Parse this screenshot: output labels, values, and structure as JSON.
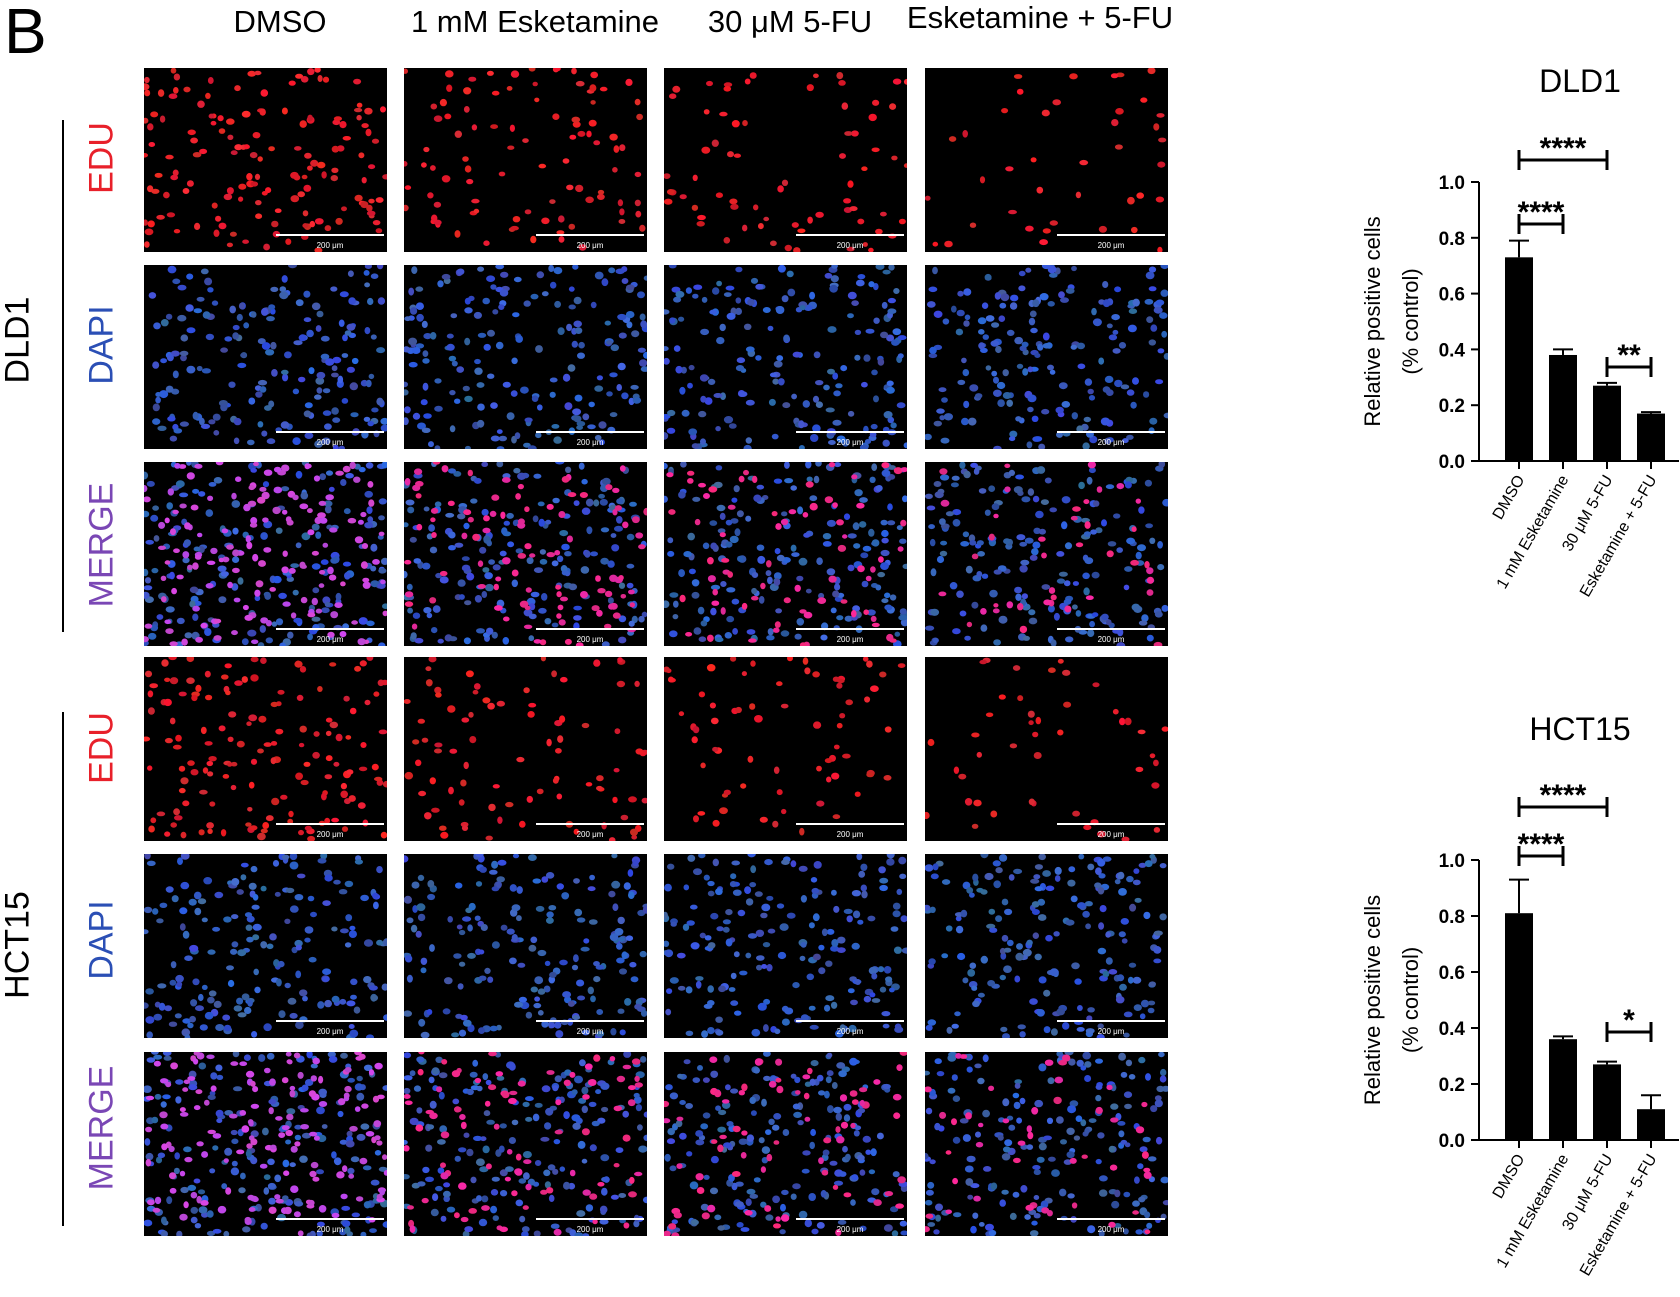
{
  "panel": {
    "letter": "B"
  },
  "column_headers": [
    "DMSO",
    "1 mM Esketamine",
    "30 μM 5-FU",
    "Esketamine + 5-FU"
  ],
  "cell_lines": [
    {
      "name": "DLD1",
      "stains": [
        "EDU",
        "DAPI",
        "MERGE"
      ]
    },
    {
      "name": "HCT15",
      "stains": [
        "EDU",
        "DAPI",
        "MERGE"
      ]
    }
  ],
  "stain_colors": {
    "EDU": "#e8202a",
    "DAPI": "#2b4fb5",
    "MERGE": "#7a47b5"
  },
  "scale_bar_label": "200 μm",
  "chart_data": [
    {
      "type": "bar",
      "title": "DLD1",
      "ylabel": "Relative positive cells\n(% control)",
      "ylabel_lines": [
        "Relative positive cells",
        "(% control)"
      ],
      "categories": [
        "DMSO",
        "1 mM Esketamine",
        "30 μM 5-FU",
        "Esketamine + 5-FU"
      ],
      "values": [
        0.73,
        0.38,
        0.27,
        0.17
      ],
      "errors": [
        0.06,
        0.02,
        0.01,
        0.005
      ],
      "ylim": [
        0,
        1.0
      ],
      "yticks": [
        "0.0",
        "0.2",
        "0.4",
        "0.6",
        "0.8",
        "1.0"
      ],
      "significance": [
        {
          "from": 0,
          "to": 2,
          "label": "****"
        },
        {
          "from": 0,
          "to": 1,
          "label": "****"
        },
        {
          "from": 2,
          "to": 3,
          "label": "**"
        }
      ]
    },
    {
      "type": "bar",
      "title": "HCT15",
      "ylabel": "Relative positive cells\n(% control)",
      "ylabel_lines": [
        "Relative positive cells",
        "(% control)"
      ],
      "categories": [
        "DMSO",
        "1 mM Esketamine",
        "30 μM 5-FU",
        "Esketamine + 5-FU"
      ],
      "values": [
        0.81,
        0.36,
        0.27,
        0.11
      ],
      "errors": [
        0.12,
        0.01,
        0.01,
        0.05
      ],
      "ylim": [
        0,
        1.0
      ],
      "yticks": [
        "0.0",
        "0.2",
        "0.4",
        "0.6",
        "0.8",
        "1.0"
      ],
      "significance": [
        {
          "from": 0,
          "to": 2,
          "label": "****"
        },
        {
          "from": 0,
          "to": 1,
          "label": "****"
        },
        {
          "from": 2,
          "to": 3,
          "label": "*"
        }
      ]
    }
  ]
}
